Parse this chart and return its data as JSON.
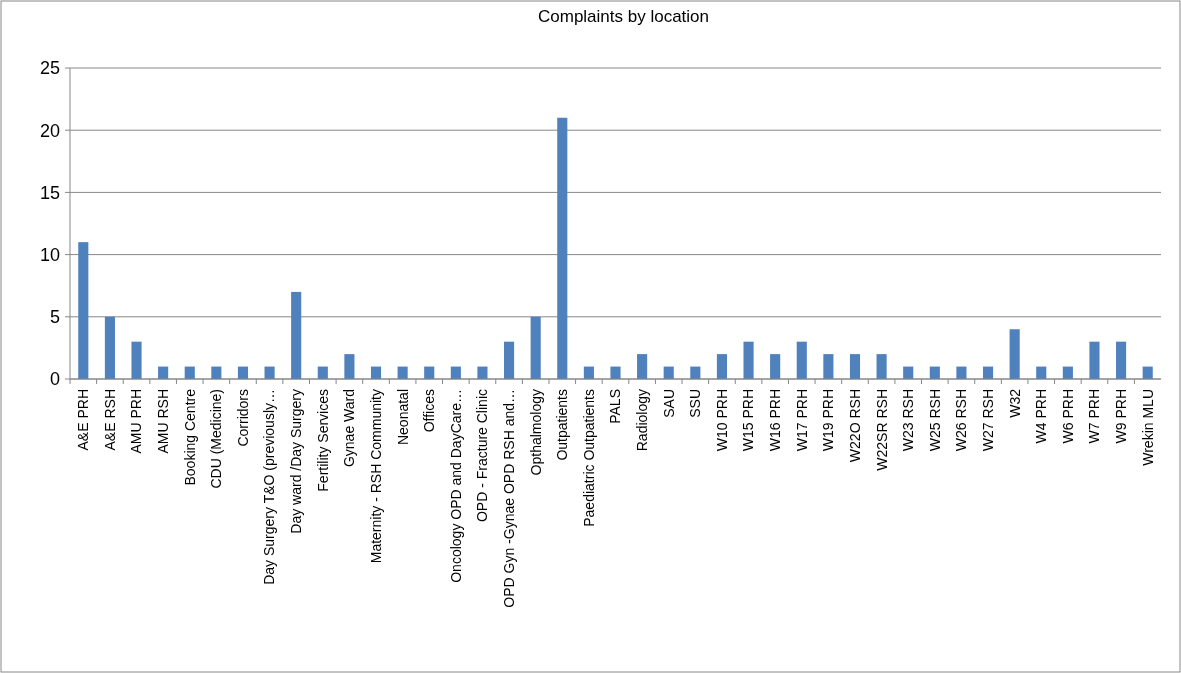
{
  "chart_data": {
    "type": "bar",
    "title": "Complaints by location",
    "categories": [
      "A&E PRH",
      "A&E RSH",
      "AMU PRH",
      "AMU RSH",
      "Booking Centre",
      "CDU (Medicine)",
      "Corridors",
      "Day Surgery T&O (previously…",
      "Day ward /Day Surgery",
      "Fertility Services",
      "Gynae Ward",
      "Maternity - RSH Community",
      "Neonatal",
      "Offices",
      "Oncology OPD and DayCare…",
      "OPD  - Fracture Clinic",
      "OPD  Gyn -Gynae OPD RSH and…",
      "Opthalmology",
      "Outpatients",
      "Paediatric Outpatients",
      "PALS",
      "Radiology",
      "SAU",
      "SSU",
      "W10 PRH",
      "W15 PRH",
      "W16 PRH",
      "W17 PRH",
      "W19 PRH",
      "W22O RSH",
      "W22SR RSH",
      "W23 RSH",
      "W25 RSH",
      "W26 RSH",
      "W27 RSH",
      "W32",
      "W4 PRH",
      "W6 PRH",
      "W7 PRH",
      "W9 PRH",
      "Wrekin MLU"
    ],
    "values": [
      11,
      5,
      3,
      1,
      1,
      1,
      1,
      1,
      7,
      1,
      2,
      1,
      1,
      1,
      1,
      1,
      3,
      5,
      21,
      1,
      1,
      2,
      1,
      1,
      2,
      3,
      2,
      3,
      2,
      2,
      2,
      1,
      1,
      1,
      1,
      4,
      1,
      1,
      3,
      3,
      1
    ],
    "color": "#4f81bd",
    "ylim": [
      0,
      25
    ],
    "yticks": [
      0,
      5,
      10,
      15,
      20,
      25
    ],
    "grid": "y"
  }
}
